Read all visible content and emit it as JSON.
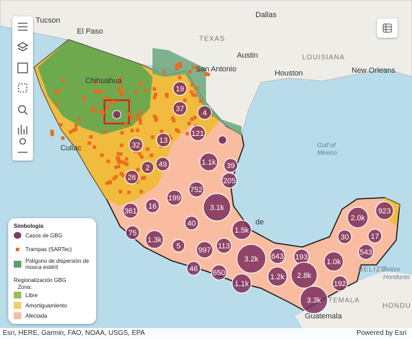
{
  "places": [
    "Tucson",
    "El Paso",
    "Dallas",
    "TEXAS",
    "Austin",
    "LOUISIANA",
    "San Antonio",
    "Houston",
    "New Orleans",
    "Chihuahua",
    "Culiac",
    "Gulf of",
    "Mexico",
    "BELIZE",
    "Belize",
    "Honduras",
    "TEMALA",
    "HONDU",
    "Guatemala",
    "de"
  ],
  "clusters": [
    "19",
    "37",
    "4",
    "121",
    "32",
    "13",
    "1.1k",
    "39",
    "49",
    "2",
    "205",
    "26",
    "752",
    "199",
    "3.1k",
    "16",
    "361",
    "40",
    "1.5k",
    "75",
    "1.3k",
    "5",
    "997",
    "113",
    "3.2k",
    "643",
    "193",
    "46",
    "650",
    "1.1k",
    "1.2k",
    "2.8k",
    "1.0k",
    "192",
    "3.3k",
    "2.0k",
    "923",
    "30",
    "17",
    "543"
  ],
  "legend": {
    "title": "Simbología",
    "items": [
      "Casos de GBG",
      "Trampas (SARTec)",
      "Polígono de dispersión de mosca estéril"
    ],
    "region_title": "Regionalización GBG",
    "zone_label": "Zona:",
    "zones": [
      "Libre",
      "Amortiguamiento",
      "Afectada"
    ]
  },
  "attribution": {
    "sources": "Esri, HERE, Garmin, FAO, NOAA, USGS, EPA",
    "powered_by": "Powered by Esri"
  }
}
